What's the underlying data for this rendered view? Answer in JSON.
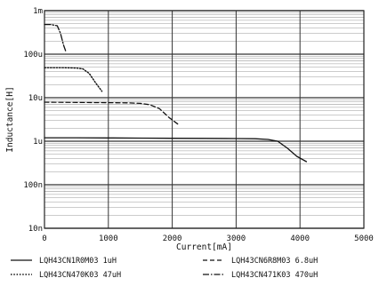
{
  "chart_data": {
    "type": "line",
    "xlabel": "Current[mA]",
    "ylabel": "Inductance[H]",
    "xlim": [
      0,
      5000
    ],
    "ylim": [
      1e-08,
      0.001
    ],
    "y_scale": "log",
    "x_ticks": [
      {
        "value": 0,
        "label": "0"
      },
      {
        "value": 1000,
        "label": "1000"
      },
      {
        "value": 2000,
        "label": "2000"
      },
      {
        "value": 3000,
        "label": "3000"
      },
      {
        "value": 4000,
        "label": "4000"
      },
      {
        "value": 5000,
        "label": "5000"
      }
    ],
    "y_ticks": [
      {
        "value": 0.001,
        "label": "1m"
      },
      {
        "value": 0.0001,
        "label": "100u"
      },
      {
        "value": 1e-05,
        "label": "10u"
      },
      {
        "value": 1e-06,
        "label": "1u"
      },
      {
        "value": 1e-07,
        "label": "100n"
      },
      {
        "value": 1e-08,
        "label": "10n"
      }
    ],
    "grid": true,
    "legend_position": "bottom",
    "series": [
      {
        "name": "LQH43CN1R0M03 1uH",
        "line_style": "solid",
        "points": [
          [
            0,
            1.2e-06
          ],
          [
            500,
            1.2e-06
          ],
          [
            1000,
            1.19e-06
          ],
          [
            1500,
            1.18e-06
          ],
          [
            2000,
            1.17e-06
          ],
          [
            2500,
            1.16e-06
          ],
          [
            3000,
            1.15e-06
          ],
          [
            3300,
            1.14e-06
          ],
          [
            3500,
            1.1e-06
          ],
          [
            3650,
            1e-06
          ],
          [
            3800,
            7e-07
          ],
          [
            3950,
            4.5e-07
          ],
          [
            4100,
            3.4e-07
          ]
        ]
      },
      {
        "name": "LQH43CN6R8M03 6.8uH",
        "line_style": "dashed",
        "points": [
          [
            0,
            7.9e-06
          ],
          [
            500,
            7.8e-06
          ],
          [
            1000,
            7.7e-06
          ],
          [
            1300,
            7.6e-06
          ],
          [
            1500,
            7.4e-06
          ],
          [
            1650,
            6.9e-06
          ],
          [
            1800,
            5.6e-06
          ],
          [
            1950,
            3.5e-06
          ],
          [
            2100,
            2.4e-06
          ]
        ]
      },
      {
        "name": "LQH43CN470K03 47uH",
        "line_style": "dotted",
        "points": [
          [
            0,
            4.9e-05
          ],
          [
            300,
            4.9e-05
          ],
          [
            500,
            4.8e-05
          ],
          [
            600,
            4.6e-05
          ],
          [
            700,
            3.6e-05
          ],
          [
            800,
            2.2e-05
          ],
          [
            900,
            1.4e-05
          ]
        ]
      },
      {
        "name": "LQH43CN471K03 470uH",
        "line_style": "dashdot",
        "points": [
          [
            0,
            0.00048
          ],
          [
            100,
            0.00048
          ],
          [
            200,
            0.00045
          ],
          [
            250,
            0.0003
          ],
          [
            300,
            0.00016
          ],
          [
            330,
            0.00012
          ]
        ]
      }
    ]
  }
}
